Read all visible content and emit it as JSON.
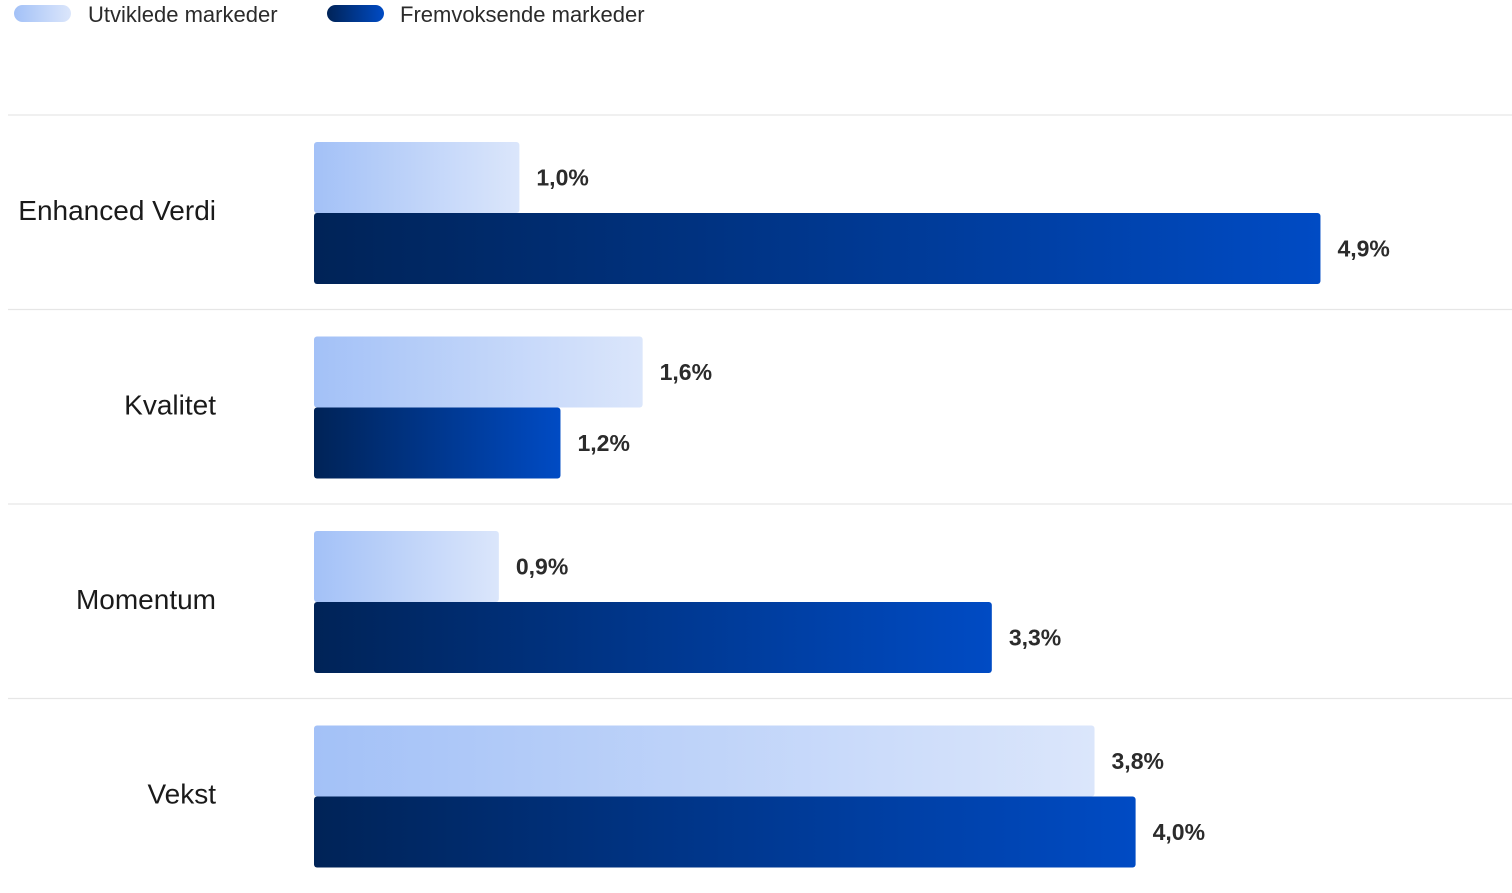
{
  "chart_data": {
    "type": "bar",
    "orientation": "horizontal",
    "categories": [
      "Enhanced Verdi",
      "Kvalitet",
      "Momentum",
      "Vekst"
    ],
    "series": [
      {
        "name": "Utviklede markeder",
        "values": [
          1.0,
          1.6,
          0.9,
          3.8
        ],
        "labels": [
          "1,0%",
          "1,6%",
          "0,9%",
          "3,8%"
        ],
        "color_start": "#a3c1f7",
        "color_end": "#dbe6fb"
      },
      {
        "name": "Fremvoksende markeder",
        "values": [
          4.9,
          1.2,
          3.3,
          4.0
        ],
        "labels": [
          "4,9%",
          "1,2%",
          "3,3%",
          "4,0%"
        ],
        "color_start": "#002357",
        "color_end": "#004bc4"
      }
    ],
    "legend_position": "top-left",
    "xlim": [
      0,
      5
    ],
    "grid": false,
    "separator_color": "#e6e6e6"
  }
}
